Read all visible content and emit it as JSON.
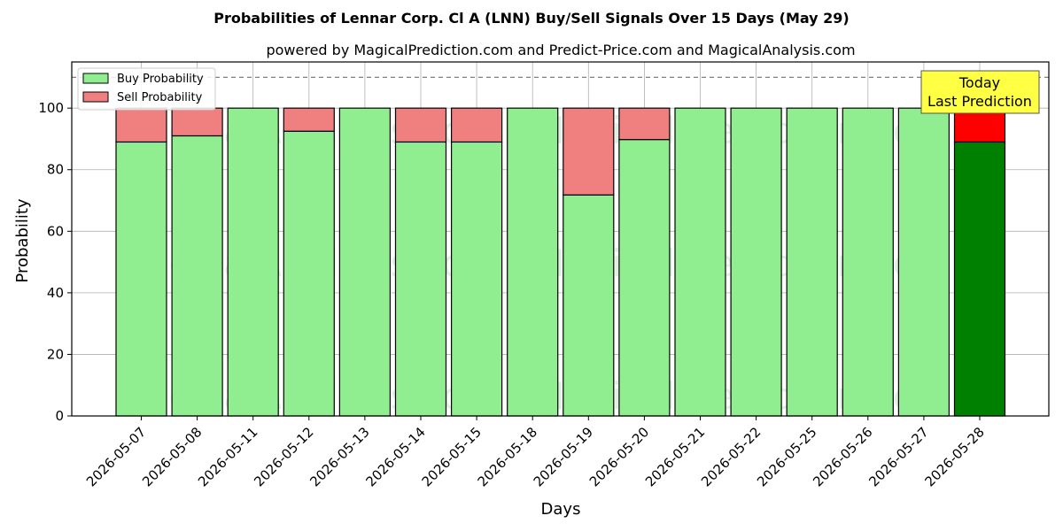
{
  "chart_data": {
    "type": "bar",
    "stacked": true,
    "title": "Probabilities of Lennar Corp. Cl A (LNN) Buy/Sell Signals Over 15 Days (May 29)",
    "subtitle": "powered by MagicalPrediction.com and Predict-Price.com and MagicalAnalysis.com",
    "xlabel": "Days",
    "ylabel": "Probability",
    "ylim": [
      0,
      115
    ],
    "yticks": [
      0,
      20,
      40,
      60,
      80,
      100
    ],
    "grid": true,
    "legend_position": "top-left",
    "reference_line": 110,
    "categories": [
      "2026-05-07",
      "2026-05-08",
      "2026-05-11",
      "2026-05-12",
      "2026-05-13",
      "2026-05-14",
      "2026-05-15",
      "2026-05-18",
      "2026-05-19",
      "2026-05-20",
      "2026-05-21",
      "2026-05-22",
      "2026-05-25",
      "2026-05-26",
      "2026-05-27",
      "2026-05-28"
    ],
    "series": [
      {
        "name": "Buy Probability",
        "color": "#90ee90",
        "highlight_color": "#008000",
        "values": [
          89,
          91,
          100,
          92.5,
          100,
          89,
          89,
          100,
          71.8,
          89.8,
          100,
          100,
          100,
          100,
          100,
          89
        ]
      },
      {
        "name": "Sell Probability",
        "color": "#f08080",
        "highlight_color": "#ff0000",
        "values": [
          11,
          9,
          0,
          7.5,
          0,
          11,
          11,
          0,
          28.2,
          10.2,
          0,
          0,
          0,
          0,
          0,
          11
        ]
      }
    ],
    "highlight_index": 15,
    "annotation": {
      "lines": [
        "Today",
        "Last Prediction"
      ],
      "color": "#ffff44"
    },
    "watermarks": [
      "MagicalAnalysis.com",
      "MagicalPrediction.com"
    ]
  }
}
